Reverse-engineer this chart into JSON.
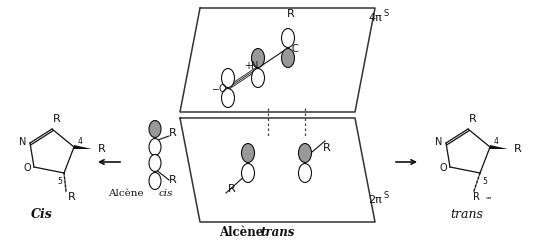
{
  "bg_color": "#ffffff",
  "figure_size": [
    5.57,
    2.52
  ],
  "dpi": 100,
  "text_color": "#111111",
  "orbital_fill_white": "#ffffff",
  "orbital_fill_gray": "#999999",
  "orbital_stroke": "#111111",
  "plane_stroke": "#333333",
  "dashed_color": "#444444",
  "labels": {
    "R": "R",
    "N": "N",
    "O": "O",
    "C": "C",
    "plus": "+",
    "minus": "−",
    "4": "4",
    "5": "5",
    "cis_bold": "Cis",
    "trans_italic": "trans",
    "alcene_cis": "Alcène ",
    "cis_italic": "cis",
    "alcene_trans": "Alcène ",
    "trans_italic2": "trans",
    "four_pi": "4π",
    "S_sup": "S",
    "two_pi": "2π"
  }
}
